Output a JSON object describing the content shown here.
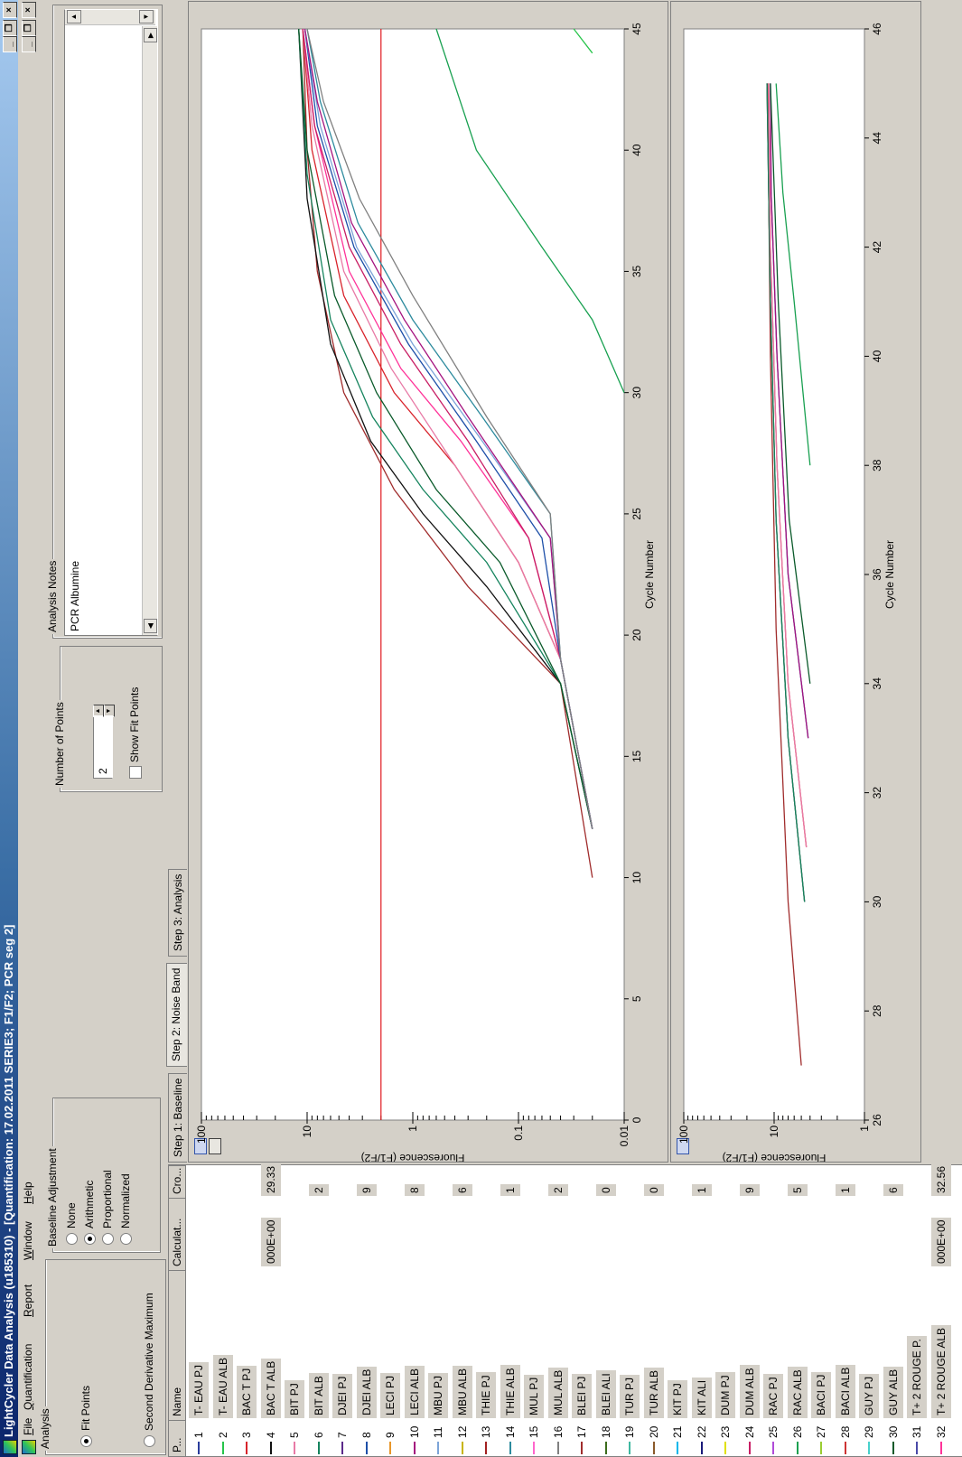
{
  "window": {
    "title": "LightCycler Data Analysis (u185310) - [Quantification: 17.02.2011 SERIE3; F1/F2; PCR seg 2]",
    "buttons": [
      "_",
      "❐",
      "×"
    ]
  },
  "menu": [
    "File",
    "Quantification",
    "Report",
    "Window",
    "Help"
  ],
  "analysis": {
    "label": "Analysis",
    "options": [
      {
        "label": "Fit Points",
        "selected": true
      },
      {
        "label": "Second Derivative Maximum",
        "selected": false
      }
    ]
  },
  "baseline": {
    "label": "Baseline Adjustment",
    "options": [
      {
        "label": "None",
        "selected": false
      },
      {
        "label": "Arithmetic",
        "selected": true
      },
      {
        "label": "Proportional",
        "selected": false
      },
      {
        "label": "Normalized",
        "selected": false
      }
    ]
  },
  "points": {
    "label": "Number of Points",
    "value": "2",
    "show_fit_label": "Show Fit Points"
  },
  "notes": {
    "label": "Analysis Notes",
    "text": "PCR Albumine"
  },
  "tabs": [
    {
      "label": "Step 1: Baseline",
      "active": false
    },
    {
      "label": "Step 2: Noise Band",
      "active": true
    },
    {
      "label": "Step 3: Analysis",
      "active": false
    }
  ],
  "grid": {
    "columns": [
      "P...",
      "Name",
      "Calculat...",
      "Cro..."
    ],
    "rows": [
      {
        "pos": "1",
        "name": "T- EAU PJ",
        "color": "#2a3c9c",
        "c1": "",
        "c2": ""
      },
      {
        "pos": "2",
        "name": "T- EAU ALB",
        "color": "#27c44a",
        "c1": "",
        "c2": ""
      },
      {
        "pos": "3",
        "name": "BAC     T PJ",
        "color": "#d8232b",
        "c1": "",
        "c2": ""
      },
      {
        "pos": "4",
        "name": "BAC      T ALB",
        "color": "#111111",
        "c1": "000E+00",
        "c2": "29.33"
      },
      {
        "pos": "5",
        "name": "BIT      PJ",
        "color": "#e87aa6",
        "c1": "",
        "c2": ""
      },
      {
        "pos": "6",
        "name": "BIT      ALB",
        "color": "#16845e",
        "c1": "",
        "c2": "2"
      },
      {
        "pos": "7",
        "name": "DJEI     PJ",
        "color": "#5b2a8a",
        "c1": "",
        "c2": ""
      },
      {
        "pos": "8",
        "name": "DJEI     ALB",
        "color": "#1d4fa8",
        "c1": "",
        "c2": "9"
      },
      {
        "pos": "9",
        "name": "LECI     PJ",
        "color": "#e8962a",
        "c1": "",
        "c2": ""
      },
      {
        "pos": "10",
        "name": "LECI     ALB",
        "color": "#a4127e",
        "c1": "",
        "c2": "8"
      },
      {
        "pos": "11",
        "name": "MBU      PJ",
        "color": "#7ca4d8",
        "c1": "",
        "c2": ""
      },
      {
        "pos": "12",
        "name": "MBU      ALB",
        "color": "#c8b400",
        "c1": "",
        "c2": "6"
      },
      {
        "pos": "13",
        "name": "THIE     PJ",
        "color": "#a22121",
        "c1": "",
        "c2": ""
      },
      {
        "pos": "14",
        "name": "THIE     ALB",
        "color": "#2d8b9e",
        "c1": "",
        "c2": "1"
      },
      {
        "pos": "15",
        "name": "MUL      PJ",
        "color": "#ff66cc",
        "c1": "",
        "c2": ""
      },
      {
        "pos": "16",
        "name": "MUL      ALB",
        "color": "#808080",
        "c1": "",
        "c2": "2"
      },
      {
        "pos": "17",
        "name": "BLEI     PJ",
        "color": "#a02c2c",
        "c1": "",
        "c2": ""
      },
      {
        "pos": "18",
        "name": "BLEI     ALI",
        "color": "#3c6c1c",
        "c1": "",
        "c2": "0"
      },
      {
        "pos": "19",
        "name": "TUR      PJ",
        "color": "#3fb8a0",
        "c1": "",
        "c2": ""
      },
      {
        "pos": "20",
        "name": "TUR      ALB",
        "color": "#8b5a2b",
        "c1": "",
        "c2": "0"
      },
      {
        "pos": "21",
        "name": "KIT      PJ",
        "color": "#00b7eb",
        "c1": "",
        "c2": ""
      },
      {
        "pos": "22",
        "name": "KIT      ALI",
        "color": "#1a1a7a",
        "c1": "",
        "c2": "1"
      },
      {
        "pos": "23",
        "name": "DUM      PJ",
        "color": "#e0e000",
        "c1": "",
        "c2": ""
      },
      {
        "pos": "24",
        "name": "DUM      ALB",
        "color": "#c81e64",
        "c1": "",
        "c2": "9"
      },
      {
        "pos": "25",
        "name": "RAC      PJ",
        "color": "#b04ad8",
        "c1": "",
        "c2": ""
      },
      {
        "pos": "26",
        "name": "RAC      ALB",
        "color": "#18a050",
        "c1": "",
        "c2": "5"
      },
      {
        "pos": "27",
        "name": "BACI     PJ",
        "color": "#9acd32",
        "c1": "",
        "c2": ""
      },
      {
        "pos": "28",
        "name": "BACI     ALB",
        "color": "#cd3333",
        "c1": "",
        "c2": "1"
      },
      {
        "pos": "29",
        "name": "GUY      PJ",
        "color": "#48d1cc",
        "c1": "",
        "c2": ""
      },
      {
        "pos": "30",
        "name": "GUY      ALB",
        "color": "#0a5a2a",
        "c1": "",
        "c2": "6"
      },
      {
        "pos": "31",
        "name": "T+ 2 ROUGE P.",
        "color": "#4a4aa8",
        "c1": "",
        "c2": ""
      },
      {
        "pos": "32",
        "name": "T+ 2 ROUGE ALB",
        "color": "#ff3399",
        "c1": "000E+00",
        "c2": "32.56"
      }
    ]
  },
  "chart_data": [
    {
      "type": "line",
      "xlabel": "Cycle Number",
      "ylabel": "Fluorescence (F1/F2)",
      "xlim": [
        0,
        45
      ],
      "ylim": [
        0.01,
        100
      ],
      "yscale": "log",
      "xticks": [
        0,
        5,
        10,
        15,
        20,
        25,
        30,
        35,
        40,
        45
      ],
      "yticks": [
        {
          "v": 0.01,
          "label": "0.01"
        },
        {
          "v": 0.1,
          "label": "0.1"
        },
        {
          "v": 1,
          "label": "1"
        },
        {
          "v": 10,
          "label": "10"
        },
        {
          "v": 100,
          "label": "100"
        }
      ],
      "threshold": 2.0,
      "threshold_color": "#e0191f",
      "series": [
        {
          "color": "#a02c2c",
          "points": [
            [
              10,
              0.02
            ],
            [
              18,
              0.04
            ],
            [
              22,
              0.3
            ],
            [
              26,
              1.5
            ],
            [
              30,
              4.5
            ],
            [
              35,
              8
            ],
            [
              40,
              10
            ],
            [
              45,
              11
            ]
          ]
        },
        {
          "color": "#111111",
          "points": [
            [
              12,
              0.02
            ],
            [
              18,
              0.04
            ],
            [
              22,
              0.2
            ],
            [
              25,
              0.8
            ],
            [
              28,
              2.5
            ],
            [
              32,
              6
            ],
            [
              38,
              10
            ],
            [
              45,
              12
            ]
          ]
        },
        {
          "color": "#16845e",
          "points": [
            [
              12,
              0.02
            ],
            [
              18,
              0.04
            ],
            [
              23,
              0.2
            ],
            [
              26,
              0.8
            ],
            [
              29,
              2.4
            ],
            [
              33,
              6
            ],
            [
              39,
              10
            ],
            [
              45,
              12
            ]
          ]
        },
        {
          "color": "#0a5a2a",
          "points": [
            [
              12,
              0.02
            ],
            [
              18,
              0.04
            ],
            [
              23,
              0.15
            ],
            [
              26,
              0.6
            ],
            [
              30,
              2.2
            ],
            [
              34,
              5.5
            ],
            [
              40,
              10
            ],
            [
              45,
              12
            ]
          ]
        },
        {
          "color": "#d8232b",
          "points": [
            [
              12,
              0.02
            ],
            [
              19,
              0.04
            ],
            [
              23,
              0.1
            ],
            [
              27,
              0.4
            ],
            [
              30,
              1.5
            ],
            [
              34,
              4.5
            ],
            [
              40,
              9
            ],
            [
              45,
              11
            ]
          ]
        },
        {
          "color": "#e87aa6",
          "points": [
            [
              12,
              0.02
            ],
            [
              19,
              0.04
            ],
            [
              23,
              0.1
            ],
            [
              27,
              0.4
            ],
            [
              31,
              1.6
            ],
            [
              35,
              4.5
            ],
            [
              41,
              9
            ],
            [
              45,
              11
            ]
          ]
        },
        {
          "color": "#ff3399",
          "points": [
            [
              12,
              0.02
            ],
            [
              19,
              0.04
            ],
            [
              24,
              0.08
            ],
            [
              28,
              0.35
            ],
            [
              31,
              1.3
            ],
            [
              35,
              4
            ],
            [
              41,
              8.5
            ],
            [
              45,
              11
            ]
          ]
        },
        {
          "color": "#c81e64",
          "points": [
            [
              12,
              0.02
            ],
            [
              19,
              0.04
            ],
            [
              24,
              0.08
            ],
            [
              28,
              0.3
            ],
            [
              32,
              1.3
            ],
            [
              36,
              4
            ],
            [
              41,
              8.5
            ],
            [
              45,
              11
            ]
          ]
        },
        {
          "color": "#1d4fa8",
          "points": [
            [
              12,
              0.02
            ],
            [
              19,
              0.04
            ],
            [
              24,
              0.06
            ],
            [
              28,
              0.25
            ],
            [
              32,
              1.1
            ],
            [
              36,
              3.6
            ],
            [
              41,
              8
            ],
            [
              45,
              10.5
            ]
          ]
        },
        {
          "color": "#7ca4d8",
          "points": [
            [
              12,
              0.02
            ],
            [
              19,
              0.04
            ],
            [
              24,
              0.05
            ],
            [
              28,
              0.22
            ],
            [
              32,
              1.0
            ],
            [
              36,
              3.4
            ],
            [
              41,
              7.5
            ],
            [
              45,
              10.5
            ]
          ]
        },
        {
          "color": "#a4127e",
          "points": [
            [
              12,
              0.02
            ],
            [
              19,
              0.04
            ],
            [
              24,
              0.05
            ],
            [
              29,
              0.3
            ],
            [
              33,
              1.2
            ],
            [
              37,
              3.8
            ],
            [
              42,
              8
            ],
            [
              45,
              10.5
            ]
          ]
        },
        {
          "color": "#2d8b9e",
          "points": [
            [
              12,
              0.02
            ],
            [
              19,
              0.04
            ],
            [
              25,
              0.05
            ],
            [
              29,
              0.22
            ],
            [
              33,
              1.0
            ],
            [
              37,
              3.3
            ],
            [
              42,
              7.5
            ],
            [
              45,
              10
            ]
          ]
        },
        {
          "color": "#808080",
          "points": [
            [
              12,
              0.02
            ],
            [
              19,
              0.04
            ],
            [
              25,
              0.05
            ],
            [
              29,
              0.2
            ],
            [
              34,
              1.0
            ],
            [
              38,
              3.2
            ],
            [
              42,
              7
            ],
            [
              45,
              10
            ]
          ]
        },
        {
          "color": "#27c44a",
          "points": [
            [
              44,
              0.02
            ],
            [
              45,
              0.03
            ]
          ]
        },
        {
          "color": "#18a050",
          "points": [
            [
              30,
              0.01
            ],
            [
              33,
              0.02
            ],
            [
              36,
              0.06
            ],
            [
              40,
              0.25
            ],
            [
              45,
              0.6
            ]
          ]
        }
      ]
    },
    {
      "type": "line",
      "xlabel": "Cycle Number",
      "ylabel": "Fluorescence (F1/F2)",
      "xlim": [
        26,
        46
      ],
      "ylim": [
        1,
        100
      ],
      "yscale": "log",
      "xticks": [
        26,
        28,
        30,
        32,
        34,
        36,
        38,
        40,
        42,
        44,
        46
      ],
      "yticks": [
        {
          "v": 1,
          "label": "1"
        },
        {
          "v": 10,
          "label": "10"
        },
        {
          "v": 100,
          "label": "100"
        }
      ],
      "series": [
        {
          "color": "#a02c2c",
          "points": [
            [
              27,
              5.0
            ],
            [
              30,
              7
            ],
            [
              35,
              9.5
            ],
            [
              40,
              11
            ],
            [
              45,
              11.8
            ]
          ]
        },
        {
          "color": "#111111",
          "points": [
            [
              30,
              4.6
            ],
            [
              33,
              7
            ],
            [
              37,
              9.5
            ],
            [
              41,
              11
            ],
            [
              45,
              12
            ]
          ]
        },
        {
          "color": "#16845e",
          "points": [
            [
              30,
              4.6
            ],
            [
              33,
              7
            ],
            [
              37,
              9.5
            ],
            [
              41,
              11
            ],
            [
              45,
              12
            ]
          ]
        },
        {
          "color": "#d8232b",
          "points": [
            [
              31,
              4.4
            ],
            [
              34,
              7
            ],
            [
              38,
              9.3
            ],
            [
              42,
              11
            ],
            [
              45,
              11.5
            ]
          ]
        },
        {
          "color": "#e87aa6",
          "points": [
            [
              31,
              4.4
            ],
            [
              34,
              7
            ],
            [
              38,
              9.3
            ],
            [
              42,
              11
            ],
            [
              45,
              11.5
            ]
          ]
        },
        {
          "color": "#1d4fa8",
          "points": [
            [
              33,
              4.2
            ],
            [
              36,
              7
            ],
            [
              40,
              9.3
            ],
            [
              43,
              10.8
            ],
            [
              45,
              11
            ]
          ]
        },
        {
          "color": "#a4127e",
          "points": [
            [
              33,
              4.2
            ],
            [
              36,
              7
            ],
            [
              40,
              9.3
            ],
            [
              43,
              10.8
            ],
            [
              45,
              11
            ]
          ]
        },
        {
          "color": "#0a5a2a",
          "points": [
            [
              34,
              4.0
            ],
            [
              37,
              6.8
            ],
            [
              41,
              9
            ],
            [
              45,
              11
            ]
          ]
        },
        {
          "color": "#18a050",
          "points": [
            [
              38,
              4.0
            ],
            [
              41,
              6
            ],
            [
              43,
              8
            ],
            [
              45,
              9.5
            ]
          ]
        }
      ]
    }
  ]
}
